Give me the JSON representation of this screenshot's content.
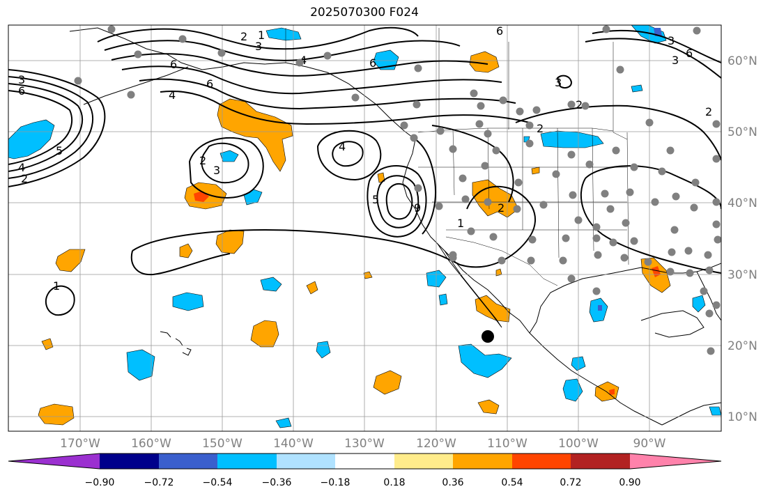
{
  "title": "2025070300 F024",
  "lon_labels": [
    "170°W",
    "160°W",
    "150°W",
    "140°W",
    "130°W",
    "120°W",
    "110°W",
    "100°W",
    "90°W"
  ],
  "lat_labels": [
    "60°N",
    "50°N",
    "40°N",
    "30°N",
    "20°N",
    "10°N"
  ],
  "colorbar": {
    "tick_labels": [
      "−0.90",
      "−0.72",
      "−0.54",
      "−0.36",
      "−0.18",
      "0.18",
      "0.36",
      "0.54",
      "0.72",
      "0.90"
    ],
    "colors": [
      "#9b30d0",
      "#00008b",
      "#3a5fcd",
      "#00bfff",
      "#b0e2ff",
      "#ffffff",
      "#ffec8b",
      "#ffa500",
      "#ff4500",
      "#b22222",
      "#ff82ab"
    ]
  },
  "contour_labels": [
    "2",
    "3",
    "6",
    "1",
    "6",
    "6",
    "4",
    "3",
    "6",
    "5",
    "4",
    "2",
    "3",
    "6",
    "4",
    "2",
    "6",
    "2",
    "4",
    "2",
    "3",
    "5",
    "9",
    "1",
    "3",
    "3",
    "2",
    "1",
    "2"
  ],
  "colors": {
    "land": "#ffffff",
    "grid": "#999999",
    "contour": "#000000",
    "station": "#808080",
    "marker": "#000000"
  }
}
